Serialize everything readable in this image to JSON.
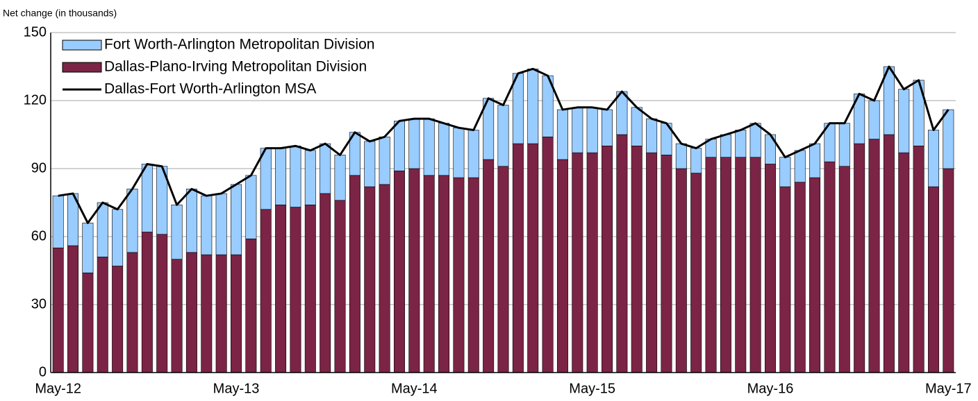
{
  "chart_data": {
    "type": "bar",
    "subtitle": "Net change (in thousands)",
    "categories": [
      "May-12",
      null,
      null,
      null,
      null,
      null,
      null,
      null,
      null,
      null,
      null,
      null,
      "May-13",
      null,
      null,
      null,
      null,
      null,
      null,
      null,
      null,
      null,
      null,
      null,
      "May-14",
      null,
      null,
      null,
      null,
      null,
      null,
      null,
      null,
      null,
      null,
      null,
      "May-15",
      null,
      null,
      null,
      null,
      null,
      null,
      null,
      null,
      null,
      null,
      null,
      "May-16",
      null,
      null,
      null,
      null,
      null,
      null,
      null,
      null,
      null,
      null,
      null,
      "May-17"
    ],
    "series": [
      {
        "name": "Fort Worth-Arlington Metropolitan Division",
        "type": "bar",
        "color": "#99ccff",
        "values": [
          23,
          23,
          22,
          24,
          25,
          28,
          30,
          30,
          24,
          28,
          26,
          27,
          31,
          28,
          27,
          25,
          27,
          24,
          22,
          20,
          19,
          20,
          21,
          22,
          22,
          25,
          23,
          22,
          21,
          27,
          27,
          31,
          33,
          27,
          22,
          20,
          20,
          16,
          19,
          17,
          15,
          14,
          11,
          11,
          8,
          10,
          12,
          15,
          13,
          13,
          14,
          15,
          17,
          19,
          22,
          17,
          30,
          28,
          29,
          25,
          26
        ]
      },
      {
        "name": "Dallas-Plano-Irving Metropolitan Division",
        "type": "bar",
        "color": "#7b2445",
        "values": [
          55,
          56,
          44,
          51,
          47,
          53,
          62,
          61,
          50,
          53,
          52,
          52,
          52,
          59,
          72,
          74,
          73,
          74,
          79,
          76,
          87,
          82,
          83,
          89,
          90,
          87,
          87,
          86,
          86,
          94,
          91,
          101,
          101,
          104,
          94,
          97,
          97,
          100,
          105,
          100,
          97,
          96,
          90,
          88,
          95,
          95,
          95,
          95,
          92,
          82,
          84,
          86,
          93,
          91,
          101,
          103,
          105,
          97,
          100,
          82,
          90
        ]
      },
      {
        "name": "Dallas-Fort Worth-Arlington MSA",
        "type": "line",
        "color": "#000000",
        "values": [
          78,
          79,
          66,
          75,
          72,
          81,
          92,
          91,
          74,
          81,
          78,
          79,
          83,
          87,
          99,
          99,
          100,
          98,
          101,
          96,
          106,
          102,
          104,
          111,
          112,
          112,
          110,
          108,
          107,
          121,
          118,
          132,
          134,
          131,
          116,
          117,
          117,
          116,
          124,
          117,
          112,
          110,
          101,
          99,
          103,
          105,
          107,
          110,
          105,
          95,
          98,
          101,
          110,
          110,
          123,
          120,
          135,
          125,
          129,
          107,
          116
        ]
      }
    ],
    "ylim": [
      0,
      150
    ],
    "yticks": [
      0,
      30,
      60,
      90,
      120,
      150
    ],
    "grid": true
  }
}
